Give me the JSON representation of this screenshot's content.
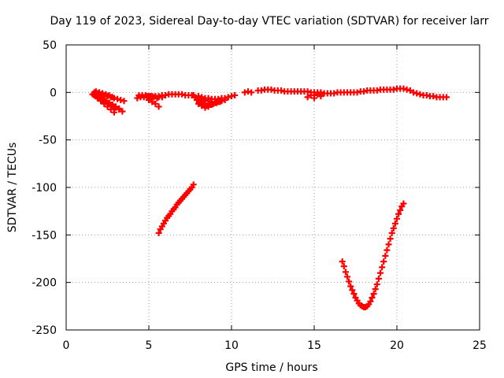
{
  "chart_data": {
    "type": "scatter",
    "title": "Day 119 of 2023, Sidereal Day-to-day VTEC variation (SDTVAR) for receiver larr",
    "xlabel": "GPS time / hours",
    "ylabel": "SDTVAR / TECUs",
    "xlim": [
      0,
      25
    ],
    "ylim": [
      -250,
      50
    ],
    "xticks": [
      "0",
      "5",
      "10",
      "15",
      "20",
      "25"
    ],
    "yticks": [
      "50",
      "0",
      "-50",
      "-100",
      "-150",
      "-200",
      "-250"
    ],
    "grid": true,
    "marker": "plus",
    "color": "#ff0000",
    "series": [
      {
        "x": [
          1.6,
          1.7,
          1.8,
          1.9,
          2.0,
          2.1,
          2.2,
          2.3,
          2.4,
          2.5,
          2.6,
          2.7,
          2.8,
          2.9,
          3.0,
          1.7,
          1.9,
          2.1,
          2.3,
          2.5,
          2.7,
          2.9,
          3.1,
          3.3,
          3.5,
          1.8,
          2.0,
          2.2,
          2.4,
          2.6,
          2.8,
          3.0,
          3.2,
          3.4,
          1.8,
          2.0,
          2.2,
          2.4,
          2.6,
          2.8,
          3.0,
          3.2,
          1.9,
          2.1,
          2.3,
          2.5,
          2.7,
          2.9,
          1.8,
          2.0,
          2.2,
          2.4,
          2.6,
          2.8
        ],
        "y": [
          -2,
          -3,
          -4,
          -5,
          -6,
          -7,
          -8,
          -9,
          -10,
          -11,
          -12,
          -13,
          -14,
          -15,
          -16,
          0,
          -1,
          -2,
          -3,
          -4,
          -5,
          -6,
          -7,
          -8,
          -9,
          -4,
          -6,
          -8,
          -10,
          -12,
          -14,
          -16,
          -18,
          -20,
          -3,
          -5,
          -7,
          -9,
          -11,
          -13,
          -15,
          -17,
          -6,
          -9,
          -12,
          -15,
          -18,
          -21,
          1,
          0,
          -1,
          -2,
          -3,
          -5
        ]
      },
      {
        "x": [
          4.3,
          4.5,
          4.7,
          4.9,
          5.1,
          5.3,
          5.5,
          4.4,
          4.6,
          4.8,
          5.0,
          5.2,
          5.4,
          5.6,
          5.8,
          5.0,
          5.2,
          5.4,
          5.6
        ],
        "y": [
          -6,
          -5,
          -5,
          -4,
          -4,
          -5,
          -6,
          -3,
          -3,
          -3,
          -4,
          -4,
          -4,
          -5,
          -5,
          -8,
          -10,
          -12,
          -15
        ]
      },
      {
        "x": [
          5.6,
          5.8,
          6.0,
          6.2,
          6.4,
          6.6,
          6.8,
          7.0,
          7.2,
          7.4,
          7.6,
          7.7
        ],
        "y": [
          -4,
          -3,
          -3,
          -2,
          -2,
          -2,
          -2,
          -2,
          -3,
          -3,
          -3,
          -3
        ]
      },
      {
        "x": [
          7.8,
          8.0,
          8.2,
          8.4,
          8.6,
          8.8,
          9.0,
          9.2,
          9.4,
          9.6,
          7.9,
          8.1,
          8.3,
          8.5,
          8.7,
          8.9,
          9.1,
          9.3,
          8.0,
          8.2,
          8.4,
          8.6,
          8.8,
          8.0,
          8.2,
          8.4,
          8.6,
          8.8,
          9.0,
          9.2,
          9.4,
          9.6,
          9.8,
          10.0,
          10.2
        ],
        "y": [
          -5,
          -6,
          -7,
          -8,
          -9,
          -10,
          -11,
          -10,
          -9,
          -8,
          -8,
          -10,
          -12,
          -14,
          -13,
          -12,
          -11,
          -10,
          -12,
          -14,
          -16,
          -15,
          -13,
          -4,
          -5,
          -6,
          -6,
          -7,
          -7,
          -7,
          -6,
          -6,
          -5,
          -4,
          -3
        ]
      },
      {
        "x": [
          10.8,
          11.0,
          11.2,
          11.6,
          11.8,
          12.0,
          12.2,
          12.4,
          12.6,
          12.8,
          13.0,
          13.2,
          13.4,
          13.6,
          13.8,
          14.0,
          14.2,
          14.4,
          14.6,
          14.8,
          15.0,
          15.2,
          15.4,
          14.8,
          15.0,
          15.2,
          15.4,
          15.6,
          15.8,
          16.0,
          16.2,
          16.4,
          16.6,
          16.8,
          17.0,
          17.2,
          17.4,
          17.6,
          17.8,
          18.0,
          18.2,
          18.4,
          18.6,
          18.8,
          19.0,
          19.2,
          19.4,
          19.6,
          19.8,
          20.0,
          20.2,
          20.4,
          20.6,
          20.8,
          21.0,
          21.2,
          21.4,
          21.6,
          21.8,
          22.0,
          22.2,
          22.4,
          22.6,
          22.8,
          23.0,
          14.6,
          15.0,
          15.4
        ],
        "y": [
          0,
          1,
          0,
          2,
          2,
          3,
          3,
          3,
          2,
          2,
          2,
          1,
          1,
          1,
          1,
          1,
          1,
          1,
          1,
          0,
          0,
          0,
          0,
          -3,
          -3,
          -2,
          -2,
          -1,
          -1,
          -1,
          -1,
          0,
          0,
          0,
          0,
          0,
          0,
          0,
          1,
          1,
          2,
          2,
          2,
          2,
          3,
          3,
          3,
          3,
          3,
          4,
          4,
          4,
          3,
          2,
          0,
          -1,
          -2,
          -3,
          -3,
          -4,
          -4,
          -5,
          -5,
          -5,
          -5,
          -5,
          -6,
          -4
        ]
      },
      {
        "x": [
          5.6,
          5.7,
          5.8,
          5.9,
          6.0,
          6.1,
          6.2,
          6.3,
          6.4,
          6.5,
          6.6,
          6.7,
          6.8,
          6.9,
          7.0,
          7.1,
          7.2,
          7.3,
          7.4,
          7.5,
          7.6,
          7.7
        ],
        "y": [
          -148,
          -144,
          -141,
          -138,
          -135,
          -132,
          -130,
          -128,
          -125,
          -123,
          -121,
          -118,
          -116,
          -114,
          -112,
          -110,
          -108,
          -106,
          -104,
          -102,
          -100,
          -97
        ]
      },
      {
        "x": [
          16.7,
          16.8,
          16.9,
          17.0,
          17.1,
          17.2,
          17.3,
          17.4,
          17.5,
          17.6,
          17.7,
          17.8,
          17.9,
          18.0,
          18.1,
          18.2,
          18.3,
          18.4,
          18.5,
          18.6,
          18.7,
          18.8,
          18.9,
          19.0,
          19.1,
          19.2,
          19.3,
          19.4,
          19.5,
          19.6,
          19.7,
          19.8,
          19.9,
          20.0,
          20.1,
          20.2,
          20.3,
          20.4
        ],
        "y": [
          -178,
          -183,
          -189,
          -194,
          -199,
          -204,
          -208,
          -212,
          -216,
          -219,
          -222,
          -224,
          -225,
          -226,
          -226,
          -225,
          -223,
          -220,
          -216,
          -212,
          -207,
          -202,
          -196,
          -190,
          -184,
          -178,
          -172,
          -166,
          -160,
          -154,
          -148,
          -143,
          -138,
          -133,
          -128,
          -124,
          -120,
          -117
        ]
      }
    ]
  }
}
